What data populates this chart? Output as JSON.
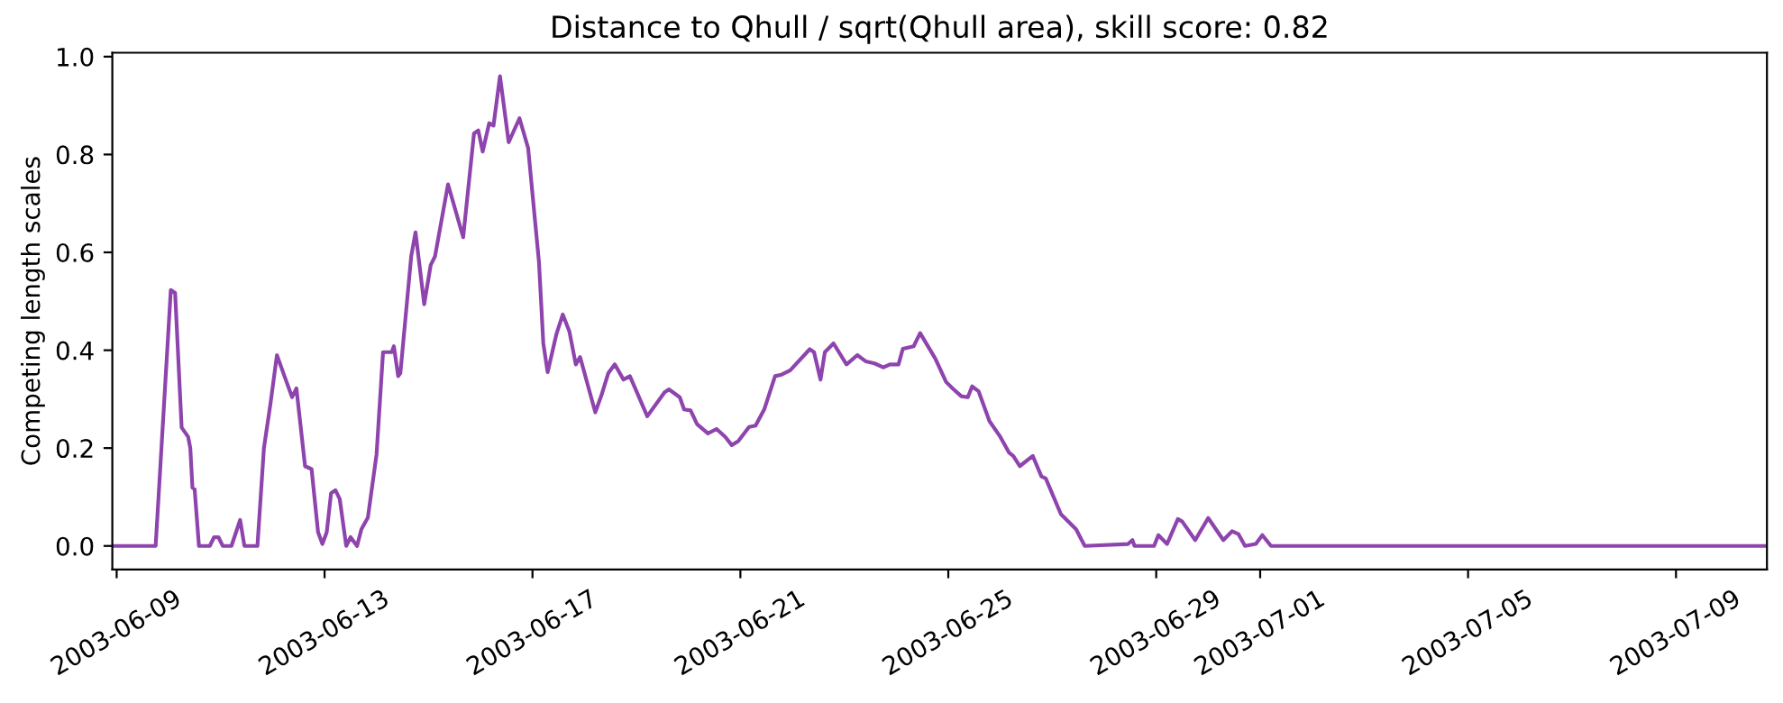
{
  "chart_data": {
    "type": "line",
    "title": "Distance to Qhull / sqrt(Qhull area), skill score: 0.82",
    "ylabel": "Competing length scales",
    "x": [
      "2003-06-08T22:00",
      "2003-06-09T18:00",
      "2003-06-10T01:00",
      "2003-06-10T03:00",
      "2003-06-10T06:00",
      "2003-06-10T09:00",
      "2003-06-10T10:00",
      "2003-06-10T11:00",
      "2003-06-10T12:00",
      "2003-06-10T14:00",
      "2003-06-10T19:00",
      "2003-06-10T21:00",
      "2003-06-10T23:00",
      "2003-06-11T01:00",
      "2003-06-11T05:00",
      "2003-06-11T09:00",
      "2003-06-11T11:00",
      "2003-06-11T17:00",
      "2003-06-11T20:00",
      "2003-06-11T23:00",
      "2003-06-12T02:00",
      "2003-06-12T05:00",
      "2003-06-12T09:00",
      "2003-06-12T11:00",
      "2003-06-12T15:00",
      "2003-06-12T18:00",
      "2003-06-12T21:00",
      "2003-06-12T23:00",
      "2003-06-13T01:00",
      "2003-06-13T03:00",
      "2003-06-13T05:00",
      "2003-06-13T07:00",
      "2003-06-13T10:00",
      "2003-06-13T12:00",
      "2003-06-13T15:00",
      "2003-06-13T17:00",
      "2003-06-13T20:00",
      "2003-06-14T00:00",
      "2003-06-14T03:00",
      "2003-06-14T07:00",
      "2003-06-14T08:00",
      "2003-06-14T10:00",
      "2003-06-14T11:00",
      "2003-06-14T16:00",
      "2003-06-14T18:00",
      "2003-06-14T22:00",
      "2003-06-15T01:00",
      "2003-06-15T03:00",
      "2003-06-15T09:00",
      "2003-06-15T16:00",
      "2003-06-15T21:00",
      "2003-06-15T23:00",
      "2003-06-16T01:00",
      "2003-06-16T04:00",
      "2003-06-16T06:00",
      "2003-06-16T09:00",
      "2003-06-16T13:00",
      "2003-06-16T18:00",
      "2003-06-16T22:00",
      "2003-06-17T03:00",
      "2003-06-17T05:00",
      "2003-06-17T07:00",
      "2003-06-17T11:00",
      "2003-06-17T14:00",
      "2003-06-17T17:00",
      "2003-06-17T20:00",
      "2003-06-17T22:00",
      "2003-06-18T05:00",
      "2003-06-18T08:00",
      "2003-06-18T11:00",
      "2003-06-18T14:00",
      "2003-06-18T18:00",
      "2003-06-18T21:00",
      "2003-06-19T05:00",
      "2003-06-19T13:00",
      "2003-06-19T15:00",
      "2003-06-19T20:00",
      "2003-06-19T22:00",
      "2003-06-20T01:00",
      "2003-06-20T04:00",
      "2003-06-20T09:00",
      "2003-06-20T13:00",
      "2003-06-20T17:00",
      "2003-06-20T20:00",
      "2003-06-20T23:00",
      "2003-06-21T04:00",
      "2003-06-21T07:00",
      "2003-06-21T11:00",
      "2003-06-21T16:00",
      "2003-06-21T19:00",
      "2003-06-21T23:00",
      "2003-06-22T08:00",
      "2003-06-22T10:00",
      "2003-06-22T13:00",
      "2003-06-22T15:00",
      "2003-06-22T19:00",
      "2003-06-23T01:00",
      "2003-06-23T06:00",
      "2003-06-23T10:00",
      "2003-06-23T14:00",
      "2003-06-23T18:00",
      "2003-06-23T21:00",
      "2003-06-24T01:00",
      "2003-06-24T03:00",
      "2003-06-24T08:00",
      "2003-06-24T11:00",
      "2003-06-24T18:00",
      "2003-06-24T23:00",
      "2003-06-25T02:00",
      "2003-06-25T06:00",
      "2003-06-25T09:00",
      "2003-06-25T11:00",
      "2003-06-25T14:00",
      "2003-06-25T19:00",
      "2003-06-26T00:00",
      "2003-06-26T04:00",
      "2003-06-26T06:00",
      "2003-06-26T09:00",
      "2003-06-26T15:00",
      "2003-06-26T19:00",
      "2003-06-26T21:00",
      "2003-06-27T04:00",
      "2003-06-27T11:00",
      "2003-06-27T15:00",
      "2003-06-28T11:00",
      "2003-06-28T13:00",
      "2003-06-28T14:00",
      "2003-06-28T23:00",
      "2003-06-29T01:00",
      "2003-06-29T05:00",
      "2003-06-29T10:00",
      "2003-06-29T12:00",
      "2003-06-29T18:00",
      "2003-06-30T00:00",
      "2003-06-30T07:00",
      "2003-06-30T11:00",
      "2003-06-30T14:00",
      "2003-06-30T17:00",
      "2003-06-30T22:00",
      "2003-07-01T01:00",
      "2003-07-01T05:00",
      "2003-07-10T18:00"
    ],
    "series": [
      {
        "color": "#8e44ad",
        "values": [
          0,
          0,
          0.523,
          0.517,
          0.242,
          0.223,
          0.2,
          0.119,
          0.116,
          0,
          0,
          0.018,
          0.018,
          0,
          0,
          0.053,
          0,
          0,
          0.2,
          0.29,
          0.39,
          0.353,
          0.304,
          0.322,
          0.163,
          0.157,
          0.028,
          0.004,
          0.028,
          0.108,
          0.114,
          0.096,
          0,
          0.018,
          0,
          0.034,
          0.058,
          0.187,
          0.396,
          0.396,
          0.408,
          0.347,
          0.353,
          0.592,
          0.641,
          0.494,
          0.574,
          0.592,
          0.739,
          0.631,
          0.843,
          0.849,
          0.806,
          0.864,
          0.859,
          0.96,
          0.825,
          0.874,
          0.813,
          0.58,
          0.414,
          0.355,
          0.432,
          0.473,
          0.439,
          0.371,
          0.386,
          0.273,
          0.31,
          0.353,
          0.371,
          0.34,
          0.347,
          0.265,
          0.314,
          0.32,
          0.304,
          0.279,
          0.277,
          0.249,
          0.23,
          0.239,
          0.223,
          0.206,
          0.214,
          0.243,
          0.246,
          0.279,
          0.347,
          0.35,
          0.359,
          0.402,
          0.396,
          0.34,
          0.396,
          0.414,
          0.371,
          0.39,
          0.377,
          0.373,
          0.365,
          0.371,
          0.371,
          0.403,
          0.408,
          0.435,
          0.383,
          0.335,
          0.322,
          0.306,
          0.304,
          0.326,
          0.316,
          0.255,
          0.223,
          0.191,
          0.184,
          0.163,
          0.184,
          0.142,
          0.138,
          0.065,
          0.034,
          0,
          0.004,
          0.012,
          0,
          0,
          0.022,
          0.004,
          0.055,
          0.05,
          0.012,
          0.057,
          0.012,
          0.03,
          0.024,
          0,
          0.004,
          0.022,
          0,
          0
        ]
      }
    ],
    "xlim": [
      "2003-06-08T22:00",
      "2003-07-10T18:00"
    ],
    "xticks": [
      "2003-06-09",
      "2003-06-13",
      "2003-06-17",
      "2003-06-21",
      "2003-06-25",
      "2003-06-29",
      "2003-07-01",
      "2003-07-05",
      "2003-07-09"
    ],
    "ylim": [
      -0.048,
      1.008
    ],
    "yticks": [
      {
        "value": 0,
        "label": "0.0"
      },
      {
        "value": 0.2,
        "label": "0.2"
      },
      {
        "value": 0.4,
        "label": "0.4"
      },
      {
        "value": 0.6,
        "label": "0.6"
      },
      {
        "value": 0.8,
        "label": "0.8"
      },
      {
        "value": 1,
        "label": "1.0"
      }
    ],
    "grid": false,
    "marker": "none",
    "line_style": "solid"
  }
}
